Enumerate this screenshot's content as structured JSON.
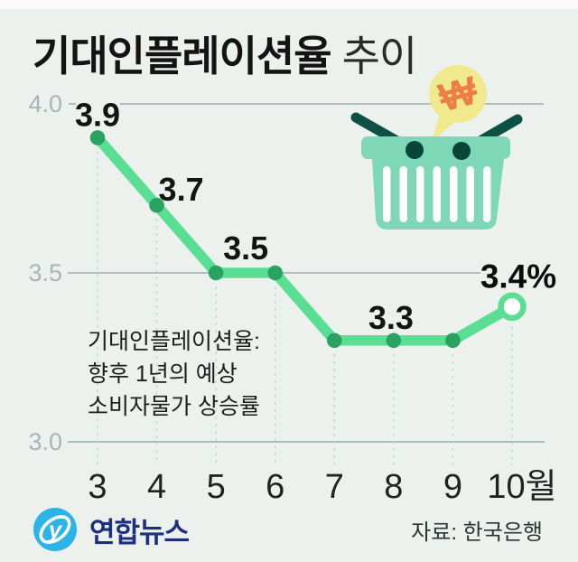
{
  "title": {
    "main": "기대인플레이션율",
    "suffix": "추이"
  },
  "chart_data": {
    "type": "line",
    "title": "기대인플레이션율 추이",
    "x": [
      "3",
      "4",
      "5",
      "6",
      "7",
      "8",
      "9",
      "10월"
    ],
    "series": [
      {
        "name": "기대인플레이션율",
        "values": [
          3.9,
          3.7,
          3.5,
          3.5,
          3.3,
          3.3,
          3.3,
          3.4
        ]
      }
    ],
    "point_labels": [
      "3.9",
      "3.7",
      "3.5",
      "",
      "",
      "3.3",
      "",
      "3.4%"
    ],
    "y_ticks": [
      "4.0",
      "3.5",
      "3.0"
    ],
    "ylim": [
      3.0,
      4.0
    ],
    "last_point_open": true,
    "grid": "horizontal-solid-plus-vertical-dashed",
    "legend": "none",
    "annotation": [
      "기대인플레이션율:",
      "향후 1년의 예상",
      "소비자물가 상승률"
    ],
    "unit_suffix_last": "%"
  },
  "icons": {
    "won_symbol": "₩",
    "basket": "shopping-basket",
    "bubble": "speech-bubble"
  },
  "colors": {
    "background": "#edf1ee",
    "line_green": "#59de94",
    "dot_green": "#2aa262",
    "open_ring": "#59de94",
    "basket_mint": "#7ed8b8",
    "handle_teal": "#0d5146",
    "pivot_teal": "#0a453c",
    "bubble_yellow": "#f0e98d",
    "won_orange": "#ed7f46",
    "gridline_gray": "#8ba0a4",
    "dash_gray": "#c5d6d8",
    "ytick_gray": "#a6b5ba",
    "logo_cyan": "#2cb4e8",
    "logo_navy": "#1d2f7d"
  },
  "footer": {
    "logo_text": "연합뉴스",
    "source": "자료: 한국은행"
  }
}
